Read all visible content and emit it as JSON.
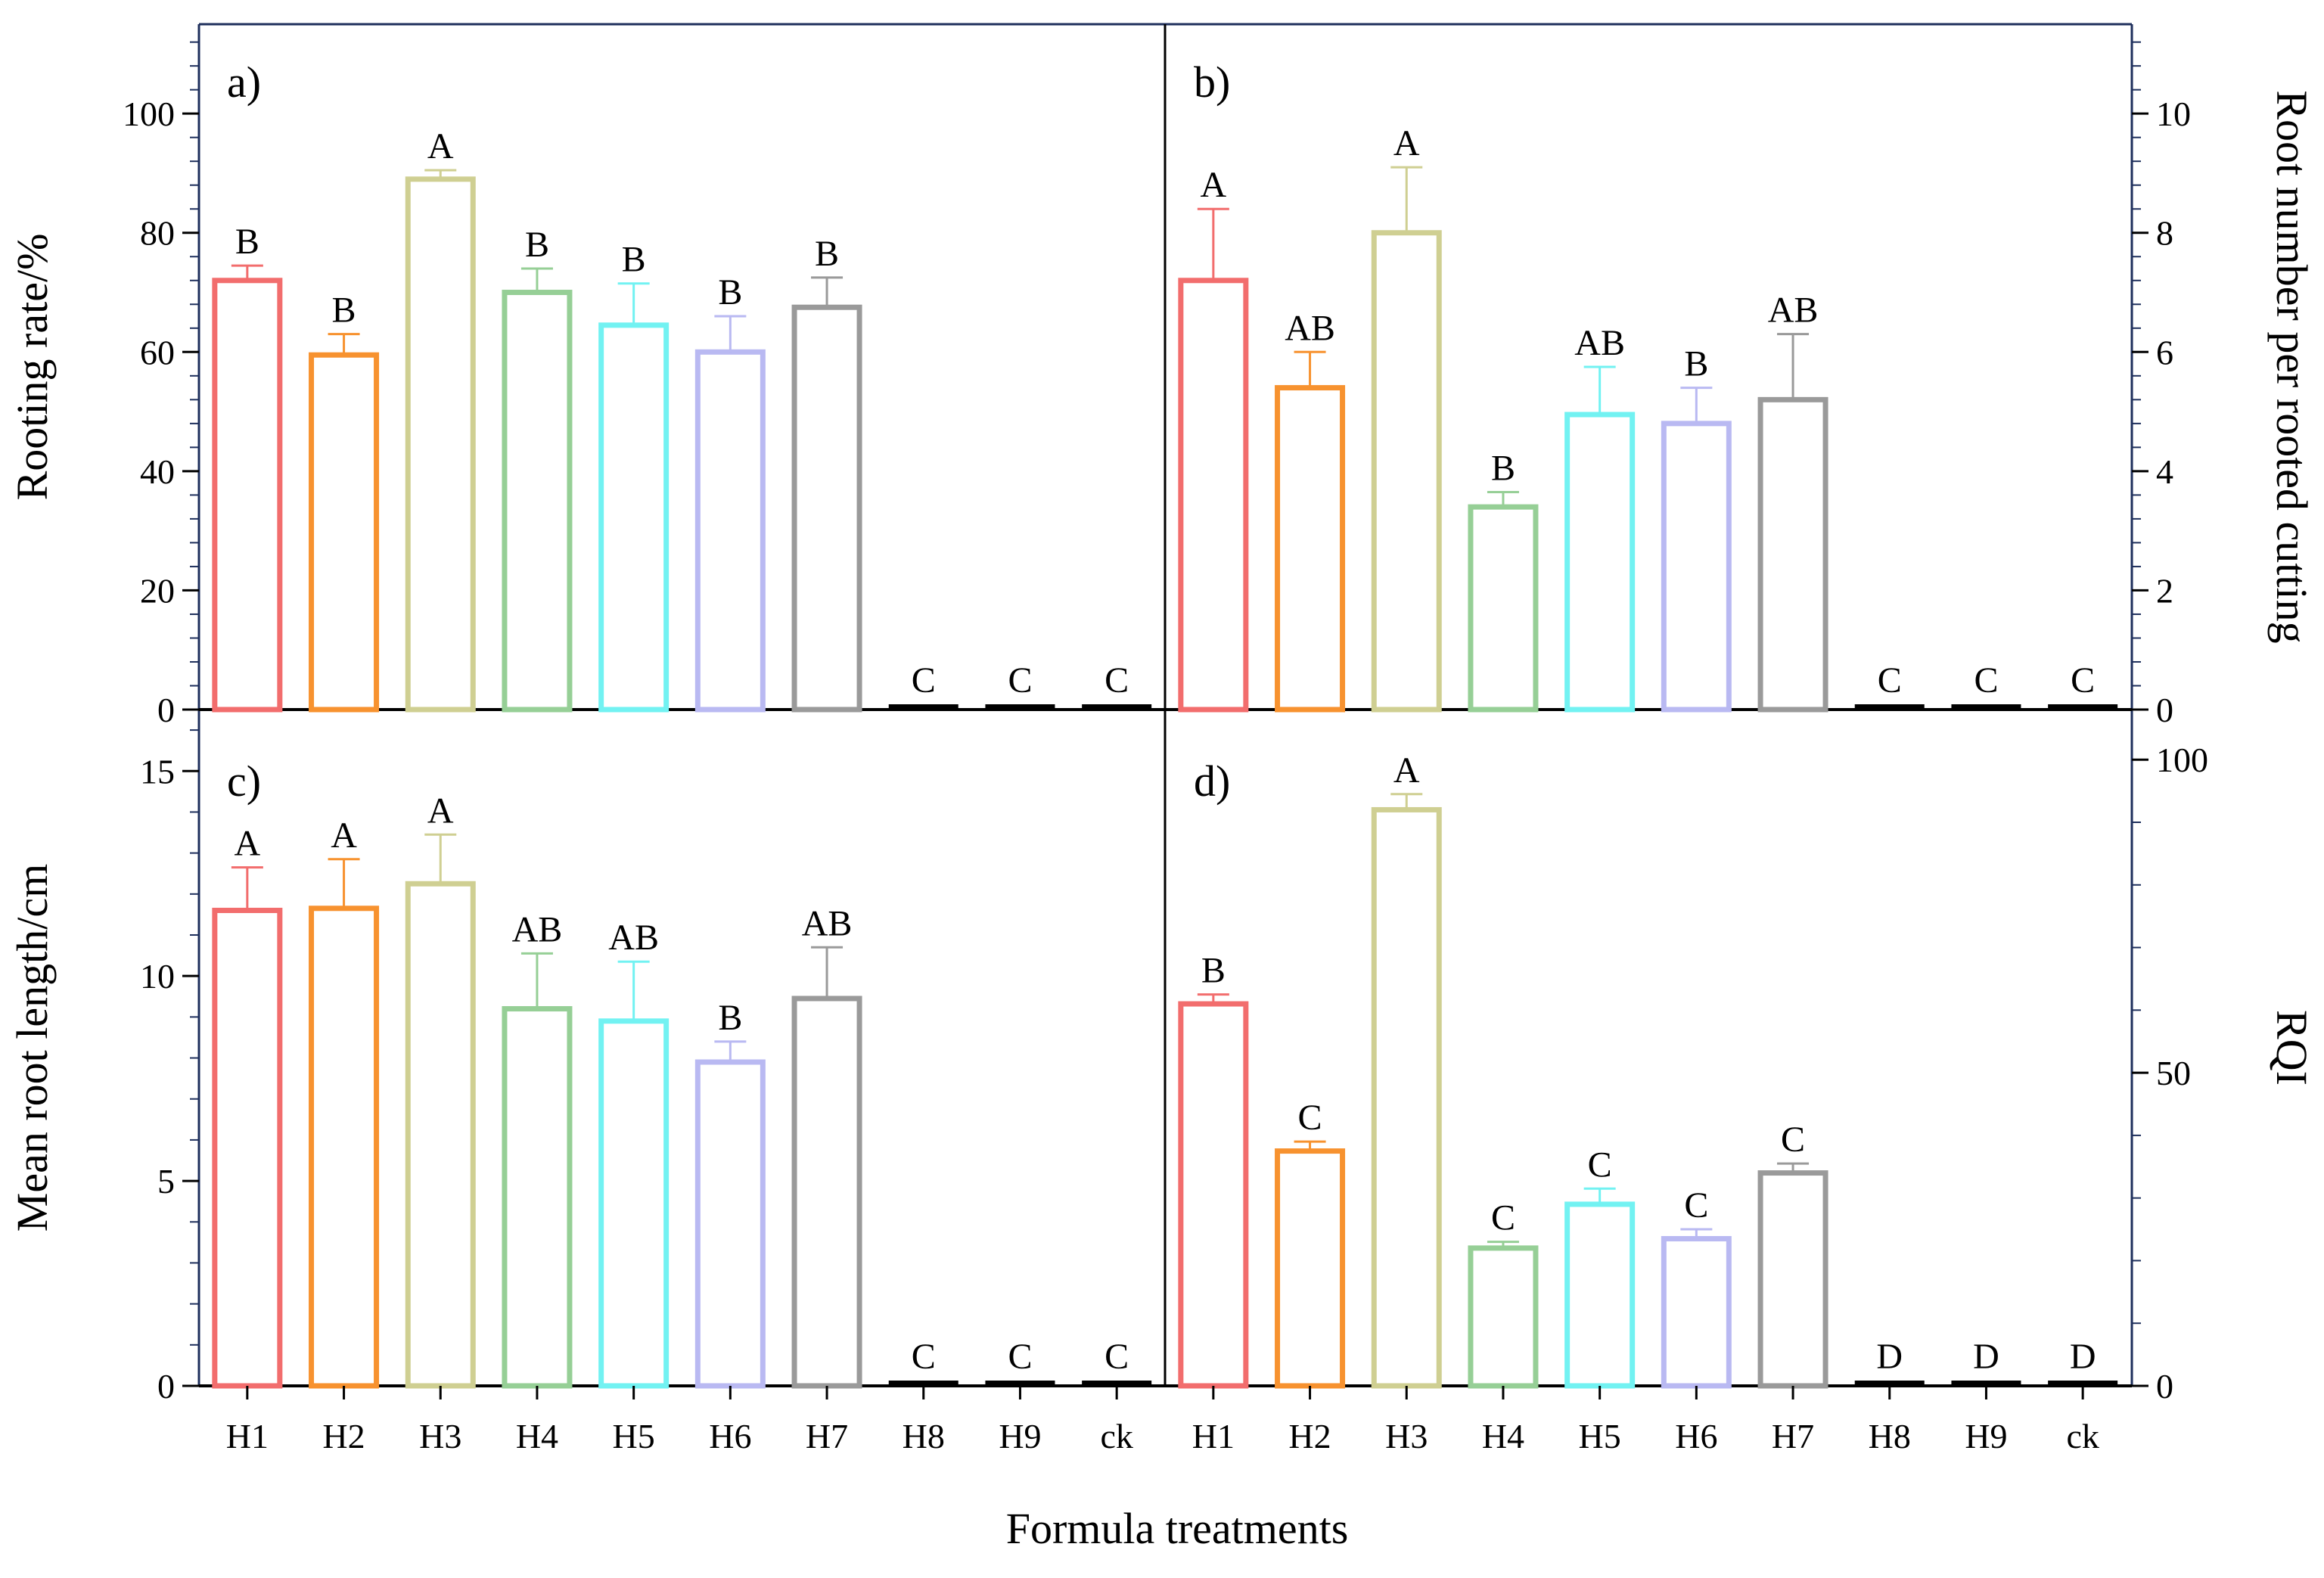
{
  "figure": {
    "xlabel": "Formula treatments",
    "categories": [
      "H1",
      "H2",
      "H3",
      "H4",
      "H5",
      "H6",
      "H7",
      "H8",
      "H9",
      "ck"
    ],
    "colors": [
      "#f26d6d",
      "#f7922f",
      "#cfcf92",
      "#96cf96",
      "#72f2f2",
      "#b9b9f2",
      "#9a9a9a",
      "#000000",
      "#000000",
      "#000000"
    ],
    "frame_color": "#1e2f5c"
  },
  "chart_data": [
    {
      "type": "bar",
      "panel_label": "a)",
      "ylabel": "Rooting rate/%",
      "axis_side": "left",
      "ylim": [
        0,
        115
      ],
      "major_ticks": [
        0,
        20,
        40,
        60,
        80,
        100
      ],
      "categories": [
        "H1",
        "H2",
        "H3",
        "H4",
        "H5",
        "H6",
        "H7",
        "H8",
        "H9",
        "ck"
      ],
      "values": [
        72,
        59.5,
        89,
        70,
        64.5,
        60,
        67.5,
        1,
        0.5,
        1
      ],
      "errors": [
        2.5,
        3.5,
        1.5,
        4,
        7,
        6,
        5,
        0,
        0,
        0
      ],
      "letters": [
        "B",
        "B",
        "A",
        "B",
        "B",
        "B",
        "B",
        "C",
        "C",
        "C"
      ]
    },
    {
      "type": "bar",
      "panel_label": "b)",
      "ylabel": "Root number per rooted cutting",
      "axis_side": "right",
      "ylim": [
        0,
        11.5
      ],
      "major_ticks": [
        0,
        2,
        4,
        6,
        8,
        10
      ],
      "categories": [
        "H1",
        "H2",
        "H3",
        "H4",
        "H5",
        "H6",
        "H7",
        "H8",
        "H9",
        "ck"
      ],
      "values": [
        7.2,
        5.4,
        8.0,
        3.4,
        4.95,
        4.8,
        5.2,
        0.06,
        0.1,
        0.06
      ],
      "errors": [
        1.2,
        0.6,
        1.1,
        0.25,
        0.8,
        0.6,
        1.1,
        0,
        0,
        0
      ],
      "letters": [
        "A",
        "AB",
        "A",
        "B",
        "AB",
        "B",
        "AB",
        "C",
        "C",
        "C"
      ]
    },
    {
      "type": "bar",
      "panel_label": "c)",
      "ylabel": "Mean root length/cm",
      "axis_side": "left",
      "ylim": [
        0,
        16.5
      ],
      "major_ticks": [
        0,
        5,
        10,
        15
      ],
      "categories": [
        "H1",
        "H2",
        "H3",
        "H4",
        "H5",
        "H6",
        "H7",
        "H8",
        "H9",
        "ck"
      ],
      "values": [
        11.6,
        11.65,
        12.25,
        9.2,
        8.9,
        7.9,
        9.45,
        0.2,
        0.15,
        0.2
      ],
      "errors": [
        1.05,
        1.2,
        1.2,
        1.35,
        1.45,
        0.5,
        1.25,
        0,
        0,
        0
      ],
      "letters": [
        "A",
        "A",
        "A",
        "AB",
        "AB",
        "B",
        "AB",
        "C",
        "C",
        "C"
      ]
    },
    {
      "type": "bar",
      "panel_label": "d)",
      "ylabel": "RQI",
      "axis_side": "right",
      "ylim": [
        0,
        108
      ],
      "major_ticks": [
        0,
        50,
        100
      ],
      "categories": [
        "H1",
        "H2",
        "H3",
        "H4",
        "H5",
        "H6",
        "H7",
        "H8",
        "H9",
        "ck"
      ],
      "values": [
        61,
        37.5,
        92,
        22,
        29,
        23.5,
        34,
        0.8,
        0.8,
        0.8
      ],
      "errors": [
        1.5,
        1.5,
        2.5,
        1,
        2.5,
        1.5,
        1.5,
        0,
        0,
        0
      ],
      "letters": [
        "B",
        "C",
        "A",
        "C",
        "C",
        "C",
        "C",
        "D",
        "D",
        "D"
      ]
    }
  ]
}
